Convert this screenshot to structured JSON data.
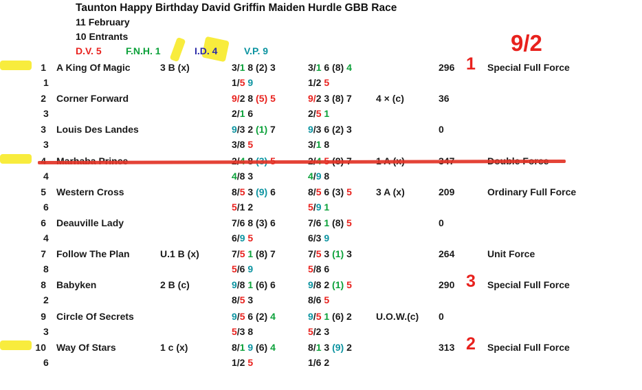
{
  "header": {
    "title": "Taunton Happy Birthday David Griffin Maiden Hurdle GBB Race",
    "date": "11 February",
    "entrants": "10 Entrants",
    "columns": [
      {
        "label": "D.V. 5",
        "color": "#e8211d",
        "highlighted": false
      },
      {
        "label": "F.N.H. 1",
        "color": "#0ca13a",
        "highlighted": false
      },
      {
        "label": "I.D. 4",
        "color": "#2b2ba8",
        "highlighted": true
      },
      {
        "label": "V.P. 9",
        "color": "#0b93a0",
        "highlighted": false
      }
    ],
    "odds": "9/2"
  },
  "colors": {
    "k": "#1a1a1a",
    "r": "#e8211d",
    "g": "#0ca13a",
    "t": "#0b93a0",
    "b": "#2b2ba8",
    "marker_yellow": "#f8ec3d",
    "strike_red": "#e23326"
  },
  "rows": [
    {
      "num": "1",
      "num2": "1",
      "name": "A King Of Magic",
      "mod": "3 B (x)",
      "fig1": [
        [
          "3/",
          "k"
        ],
        [
          "1",
          "g"
        ],
        [
          " 8 (2) 3",
          "k"
        ]
      ],
      "fig2": [
        [
          "3/",
          "k"
        ],
        [
          "1",
          "g"
        ],
        [
          " 6 (8) ",
          "k"
        ],
        [
          "4",
          "g"
        ]
      ],
      "fig1b": [
        [
          "1/",
          "k"
        ],
        [
          "5",
          "r"
        ],
        [
          " ",
          "k"
        ],
        [
          "9",
          "t"
        ]
      ],
      "fig2b": [
        [
          "1/2 ",
          "k"
        ],
        [
          "5",
          "r"
        ]
      ],
      "extra": "",
      "score": "296",
      "rank": "1",
      "force": "Special Full Force",
      "highlight": true,
      "strike": false
    },
    {
      "num": "2",
      "num2": "3",
      "name": "Corner Forward",
      "mod": "",
      "fig1": [
        [
          "9/",
          "r"
        ],
        [
          "2 8 ",
          "k"
        ],
        [
          "(5)",
          "r"
        ],
        [
          " ",
          "k"
        ],
        [
          "5",
          "r"
        ]
      ],
      "fig2": [
        [
          "9/",
          "r"
        ],
        [
          "2 3 (8) 7",
          "k"
        ]
      ],
      "fig1b": [
        [
          "2/",
          "k"
        ],
        [
          "1",
          "g"
        ],
        [
          " 6",
          "k"
        ]
      ],
      "fig2b": [
        [
          "2/",
          "k"
        ],
        [
          "5",
          "r"
        ],
        [
          " ",
          "k"
        ],
        [
          "1",
          "g"
        ]
      ],
      "extra": "4 × (c)",
      "score": "36",
      "rank": "",
      "force": "",
      "highlight": false,
      "strike": false
    },
    {
      "num": "3",
      "num2": "3",
      "name": "Louis Des Landes",
      "mod": "",
      "fig1": [
        [
          "9",
          "t"
        ],
        [
          "/3 2 ",
          "k"
        ],
        [
          "(1)",
          "g"
        ],
        [
          " 7",
          "k"
        ]
      ],
      "fig2": [
        [
          "9",
          "t"
        ],
        [
          "/3 6 (2) 3",
          "k"
        ]
      ],
      "fig1b": [
        [
          "3/8 ",
          "k"
        ],
        [
          "5",
          "r"
        ]
      ],
      "fig2b": [
        [
          "3/",
          "k"
        ],
        [
          "1",
          "g"
        ],
        [
          " 8",
          "k"
        ]
      ],
      "extra": "",
      "score": "0",
      "rank": "",
      "force": "",
      "highlight": false,
      "strike": false
    },
    {
      "num": "4",
      "num2": "4",
      "name": "Marhaba Prince",
      "mod": "",
      "fig1": [
        [
          "2/",
          "k"
        ],
        [
          "4",
          "g"
        ],
        [
          " 8 ",
          "k"
        ],
        [
          "(3)",
          "t"
        ],
        [
          " ",
          "k"
        ],
        [
          "5",
          "r"
        ]
      ],
      "fig2": [
        [
          "2/",
          "k"
        ],
        [
          "4",
          "g"
        ],
        [
          " ",
          "k"
        ],
        [
          "5",
          "r"
        ],
        [
          " (8) 7",
          "k"
        ]
      ],
      "fig1b": [
        [
          "4",
          "g"
        ],
        [
          "/8 3",
          "k"
        ]
      ],
      "fig2b": [
        [
          "4",
          "g"
        ],
        [
          "/",
          "k"
        ],
        [
          "9",
          "t"
        ],
        [
          " 8",
          "k"
        ]
      ],
      "extra": "1 A (x)",
      "score": "347",
      "rank": "",
      "force": "Double Force",
      "highlight": true,
      "strike": true
    },
    {
      "num": "5",
      "num2": "6",
      "name": "Western Cross",
      "mod": "",
      "fig1": [
        [
          "8/",
          "k"
        ],
        [
          "5",
          "r"
        ],
        [
          " 3 ",
          "k"
        ],
        [
          "(9)",
          "t"
        ],
        [
          " 6",
          "k"
        ]
      ],
      "fig2": [
        [
          "8/",
          "k"
        ],
        [
          "5",
          "r"
        ],
        [
          " 6 (3) ",
          "k"
        ],
        [
          "5",
          "r"
        ]
      ],
      "fig1b": [
        [
          "5",
          "r"
        ],
        [
          "/1 2",
          "k"
        ]
      ],
      "fig2b": [
        [
          "5",
          "r"
        ],
        [
          "/",
          "k"
        ],
        [
          "9",
          "t"
        ],
        [
          " ",
          "k"
        ],
        [
          "1",
          "g"
        ]
      ],
      "extra": "3 A (x)",
      "score": "209",
      "rank": "",
      "force": "Ordinary Full Force",
      "highlight": false,
      "strike": false
    },
    {
      "num": "6",
      "num2": "4",
      "name": "Deauville Lady",
      "mod": "",
      "fig1": [
        [
          "7/6 8 (3) 6",
          "k"
        ]
      ],
      "fig2": [
        [
          "7/6 ",
          "k"
        ],
        [
          "1",
          "g"
        ],
        [
          " (8) ",
          "k"
        ],
        [
          "5",
          "r"
        ]
      ],
      "fig1b": [
        [
          "6/",
          "k"
        ],
        [
          "9",
          "t"
        ],
        [
          " ",
          "k"
        ],
        [
          "5",
          "r"
        ]
      ],
      "fig2b": [
        [
          "6/3 ",
          "k"
        ],
        [
          "9",
          "t"
        ]
      ],
      "extra": "",
      "score": "0",
      "rank": "",
      "force": "",
      "highlight": false,
      "strike": false
    },
    {
      "num": "7",
      "num2": "8",
      "name": "Follow The Plan",
      "mod": "U.1 B (x)",
      "fig1": [
        [
          "7/",
          "k"
        ],
        [
          "5",
          "r"
        ],
        [
          " ",
          "k"
        ],
        [
          "1",
          "g"
        ],
        [
          " (8) 7",
          "k"
        ]
      ],
      "fig2": [
        [
          "7/",
          "k"
        ],
        [
          "5",
          "r"
        ],
        [
          " 3 ",
          "k"
        ],
        [
          "(1)",
          "g"
        ],
        [
          " 3",
          "k"
        ]
      ],
      "fig1b": [
        [
          "5",
          "r"
        ],
        [
          "/6 ",
          "k"
        ],
        [
          "9",
          "t"
        ]
      ],
      "fig2b": [
        [
          "5",
          "r"
        ],
        [
          "/8 6",
          "k"
        ]
      ],
      "extra": "",
      "score": "264",
      "rank": "",
      "force": "Unit Force",
      "highlight": false,
      "strike": false
    },
    {
      "num": "8",
      "num2": "2",
      "name": "Babyken",
      "mod": "2 B (c)",
      "fig1": [
        [
          "9",
          "t"
        ],
        [
          "/8 ",
          "k"
        ],
        [
          "1",
          "g"
        ],
        [
          " (6) 6",
          "k"
        ]
      ],
      "fig2": [
        [
          "9",
          "t"
        ],
        [
          "/8 2 ",
          "k"
        ],
        [
          "(1)",
          "g"
        ],
        [
          " ",
          "k"
        ],
        [
          "5",
          "r"
        ]
      ],
      "fig1b": [
        [
          "8/",
          "k"
        ],
        [
          "5",
          "r"
        ],
        [
          " 3",
          "k"
        ]
      ],
      "fig2b": [
        [
          "8/6 ",
          "k"
        ],
        [
          "5",
          "r"
        ]
      ],
      "extra": "",
      "score": "290",
      "rank": "3",
      "force": "Special Full Force",
      "highlight": false,
      "strike": false
    },
    {
      "num": "9",
      "num2": "3",
      "name": "Circle Of Secrets",
      "mod": "",
      "fig1": [
        [
          "9",
          "t"
        ],
        [
          "/",
          "k"
        ],
        [
          "5",
          "r"
        ],
        [
          " 6 (2) ",
          "k"
        ],
        [
          "4",
          "g"
        ]
      ],
      "fig2": [
        [
          "9",
          "t"
        ],
        [
          "/",
          "k"
        ],
        [
          "5",
          "r"
        ],
        [
          " ",
          "k"
        ],
        [
          "1",
          "g"
        ],
        [
          " (6) 2",
          "k"
        ]
      ],
      "fig1b": [
        [
          "5",
          "r"
        ],
        [
          "/3 8",
          "k"
        ]
      ],
      "fig2b": [
        [
          "5",
          "r"
        ],
        [
          "/2 3",
          "k"
        ]
      ],
      "extra": "U.O.W.(c)",
      "score": "0",
      "rank": "",
      "force": "",
      "highlight": false,
      "strike": false
    },
    {
      "num": "10",
      "num2": "6",
      "name": "Way Of Stars",
      "mod": "1 c (x)",
      "fig1": [
        [
          "8/",
          "k"
        ],
        [
          "1",
          "g"
        ],
        [
          " ",
          "k"
        ],
        [
          "9",
          "t"
        ],
        [
          " (6) ",
          "k"
        ],
        [
          "4",
          "g"
        ]
      ],
      "fig2": [
        [
          "8/",
          "k"
        ],
        [
          "1",
          "g"
        ],
        [
          " 3 ",
          "k"
        ],
        [
          "(9)",
          "t"
        ],
        [
          " 2",
          "k"
        ]
      ],
      "fig1b": [
        [
          "1/2 ",
          "k"
        ],
        [
          "5",
          "r"
        ]
      ],
      "fig2b": [
        [
          "1/6 2",
          "k"
        ]
      ],
      "extra": "",
      "score": "313",
      "rank": "2",
      "force": "Special Full Force",
      "highlight": true,
      "strike": false
    }
  ]
}
